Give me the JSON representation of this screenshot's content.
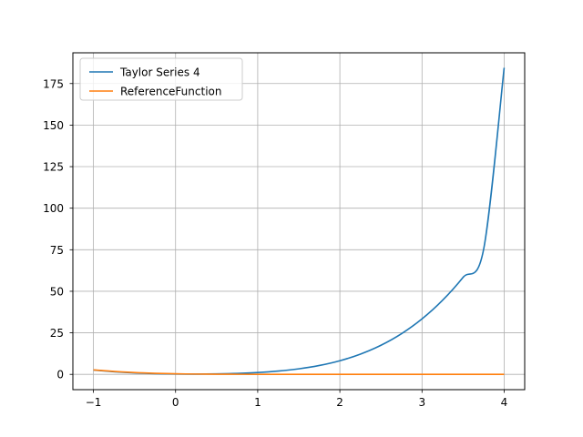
{
  "chart_data": {
    "type": "line",
    "title": "",
    "xlabel": "",
    "ylabel": "",
    "xlim": [
      -1.25,
      4.25
    ],
    "ylim": [
      -9.2,
      193.5
    ],
    "grid": true,
    "legend_position": "top-left",
    "x_ticks": [
      {
        "value": -1,
        "label": "−1"
      },
      {
        "value": 0,
        "label": "0"
      },
      {
        "value": 1,
        "label": "1"
      },
      {
        "value": 2,
        "label": "2"
      },
      {
        "value": 3,
        "label": "3"
      },
      {
        "value": 4,
        "label": "4"
      }
    ],
    "y_ticks": [
      {
        "value": 0,
        "label": "0"
      },
      {
        "value": 25,
        "label": "25"
      },
      {
        "value": 50,
        "label": "50"
      },
      {
        "value": 75,
        "label": "75"
      },
      {
        "value": 100,
        "label": "100"
      },
      {
        "value": 125,
        "label": "125"
      },
      {
        "value": 150,
        "label": "150"
      },
      {
        "value": 175,
        "label": "175"
      }
    ],
    "series": [
      {
        "name": "Taylor Series 4",
        "color": "#1f77b4",
        "x": [
          -1.0,
          -0.75,
          -0.5,
          -0.25,
          0.0,
          0.25,
          0.5,
          0.75,
          1.0,
          1.25,
          1.5,
          1.75,
          2.0,
          2.25,
          2.5,
          2.75,
          3.0,
          3.25,
          3.5,
          3.75,
          4.0
        ],
        "y": [
          2.6,
          1.61,
          0.89,
          0.44,
          0.2,
          0.16,
          0.29,
          0.59,
          1.12,
          1.99,
          3.34,
          5.34,
          8.21,
          12.18,
          17.5,
          24.46,
          33.37,
          44.57,
          58.4,
          75.23,
          184.5
        ]
      },
      {
        "name": "ReferenceFunction",
        "color": "#ff7f0e",
        "x": [
          -1.0,
          -0.75,
          -0.5,
          -0.25,
          0.0,
          0.25,
          0.5,
          0.75,
          1.0,
          1.5,
          2.0,
          2.5,
          3.0,
          3.5,
          4.0
        ],
        "y": [
          2.7,
          1.8,
          1.1,
          0.65,
          0.35,
          0.18,
          0.09,
          0.05,
          0.03,
          0.01,
          0.0,
          0.0,
          0.0,
          0.0,
          0.0
        ]
      }
    ]
  }
}
